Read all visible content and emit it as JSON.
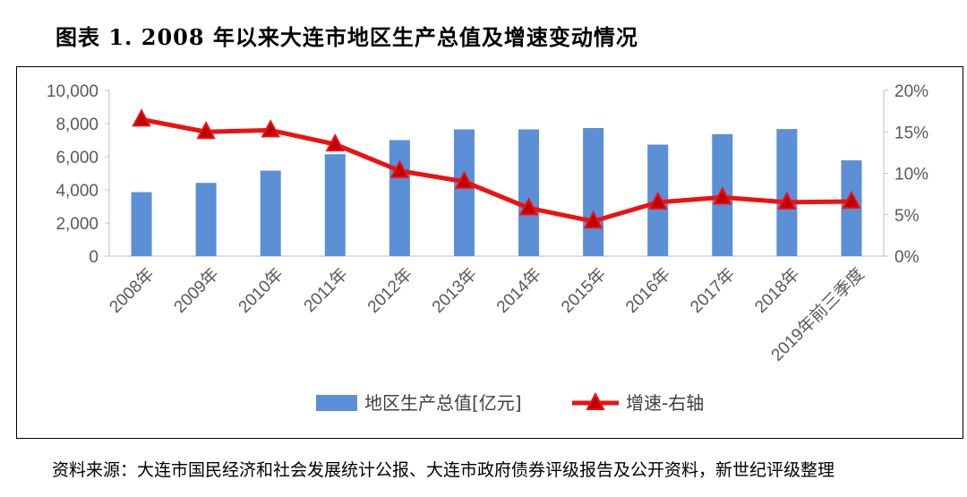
{
  "title": "图表 1. 2008 年以来大连市地区生产总值及增速变动情况",
  "source": "资料来源：大连市国民经济和社会发展统计公报、大连市政府债券评级报告及公开资料，新世纪评级整理",
  "chart_data": {
    "type": "bar+line",
    "categories": [
      "2008年",
      "2009年",
      "2010年",
      "2011年",
      "2012年",
      "2013年",
      "2014年",
      "2015年",
      "2016年",
      "2017年",
      "2018年",
      "2019年前三季度"
    ],
    "series": [
      {
        "name": "地区生产总值[亿元]",
        "type": "bar",
        "axis": "left",
        "color": "#5B8FD6",
        "values": [
          3860,
          4420,
          5160,
          6150,
          7000,
          7650,
          7650,
          7730,
          6730,
          7360,
          7670,
          5780
        ]
      },
      {
        "name": "增速-右轴",
        "type": "line",
        "axis": "right",
        "color": "#EE1111",
        "marker": "triangle",
        "values": [
          16.5,
          15.0,
          15.2,
          13.5,
          10.3,
          9.0,
          5.8,
          4.2,
          6.5,
          7.1,
          6.5,
          6.6
        ]
      }
    ],
    "y_left": {
      "min": 0,
      "max": 10000,
      "ticks": [
        "0",
        "2,000",
        "4,000",
        "6,000",
        "8,000",
        "10,000"
      ]
    },
    "y_right": {
      "min": 0,
      "max": 20,
      "ticks": [
        "0%",
        "5%",
        "10%",
        "15%",
        "20%"
      ]
    },
    "grid": false,
    "legend_position": "bottom"
  }
}
